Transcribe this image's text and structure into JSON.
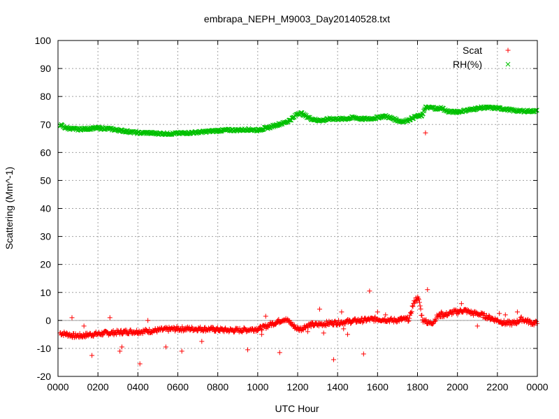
{
  "chart_data": {
    "type": "scatter",
    "title": "embrapa_NEPH_M9003_Day20140528.txt",
    "xlabel": "UTC Hour",
    "ylabel": "Scattering (Mm^-1)",
    "xlim": [
      0,
      24
    ],
    "ylim": [
      -20,
      100
    ],
    "x_ticks": [
      0,
      2,
      4,
      6,
      8,
      10,
      12,
      14,
      16,
      18,
      20,
      22,
      24
    ],
    "x_tick_labels": [
      "0000",
      "0200",
      "0400",
      "0600",
      "0800",
      "1000",
      "1200",
      "1400",
      "1600",
      "1800",
      "2000",
      "2200",
      "0000"
    ],
    "y_ticks": [
      -20,
      -10,
      0,
      10,
      20,
      30,
      40,
      50,
      60,
      70,
      80,
      90,
      100
    ],
    "grid": true,
    "legend_position": "top-right",
    "series": [
      {
        "name": "Scat",
        "marker": "+",
        "color": "#ff0000",
        "x": [
          0.1,
          0.5,
          0.8,
          1.2,
          1.6,
          2.0,
          2.5,
          3.0,
          3.5,
          4.0,
          4.5,
          5.0,
          5.5,
          6.0,
          6.5,
          7.0,
          7.5,
          8.0,
          8.5,
          9.0,
          9.5,
          10.0,
          10.3,
          10.6,
          11.0,
          11.3,
          11.6,
          11.8,
          12.0,
          12.2,
          12.4,
          12.7,
          13.0,
          13.3,
          13.6,
          14.0,
          14.4,
          14.8,
          15.2,
          15.6,
          16.0,
          16.4,
          16.8,
          17.2,
          17.6,
          17.75,
          17.9,
          18.0,
          18.1,
          18.2,
          18.3,
          18.4,
          18.5,
          18.6,
          18.8,
          19.0,
          19.2,
          19.4,
          19.6,
          19.8,
          20.0,
          20.2,
          20.4,
          20.6,
          20.8,
          21.0,
          21.2,
          21.4,
          21.6,
          21.8,
          22.0,
          22.2,
          22.4,
          22.6,
          22.8,
          23.0,
          23.2,
          23.4,
          23.6,
          23.8,
          24.0
        ],
        "y": [
          -4.5,
          -5.0,
          -5.5,
          -5.5,
          -5.0,
          -4.8,
          -4.5,
          -4.3,
          -4.0,
          -4.0,
          -3.8,
          -3.5,
          -3.2,
          -3.0,
          -3.0,
          -3.0,
          -3.1,
          -3.3,
          -3.5,
          -3.5,
          -3.3,
          -3.0,
          -2.5,
          -1.5,
          -0.5,
          0.5,
          -0.5,
          -2.0,
          -3.0,
          -3.0,
          -2.0,
          -1.5,
          -1.5,
          -1.2,
          -1.0,
          -0.8,
          -0.5,
          -0.2,
          0.0,
          0.3,
          0.5,
          0.3,
          0.0,
          0.3,
          0.5,
          5.0,
          7.5,
          8.0,
          6.5,
          2.0,
          -0.5,
          0.5,
          -1.0,
          -1.0,
          -0.5,
          1.5,
          2.0,
          2.0,
          2.5,
          3.0,
          3.0,
          3.5,
          3.5,
          3.0,
          2.5,
          2.5,
          2.0,
          1.5,
          1.0,
          0.5,
          0.0,
          -0.5,
          -1.0,
          -1.0,
          -1.0,
          -0.5,
          0.5,
          0.0,
          -0.5,
          -1.0,
          -1.0
        ],
        "outliers_x": [
          0.7,
          1.7,
          1.3,
          2.6,
          3.1,
          3.2,
          4.1,
          4.5,
          5.4,
          6.2,
          7.2,
          9.5,
          10.2,
          10.4,
          11.0,
          11.1,
          12.5,
          13.1,
          13.3,
          13.8,
          14.2,
          14.3,
          14.5,
          15.3,
          15.6,
          16.0,
          16.4,
          17.2,
          18.4,
          18.5,
          19.2,
          20.2,
          21.0,
          22.1,
          22.4,
          23.0
        ],
        "outliers_y": [
          1.0,
          -12.5,
          -2.0,
          1.0,
          -11.0,
          -9.5,
          -15.5,
          0.0,
          -9.5,
          -11.0,
          -7.5,
          -10.5,
          -5.0,
          1.5,
          0.0,
          -11.5,
          -4.0,
          4.0,
          -4.5,
          -14.0,
          3.0,
          -3.0,
          -5.0,
          -12.0,
          10.5,
          3.0,
          2.0,
          1.0,
          67.0,
          11.0,
          3.0,
          6.0,
          -2.0,
          2.5,
          2.0,
          3.0
        ]
      },
      {
        "name": "RH(%)",
        "marker": "x",
        "color": "#00c000",
        "x": [
          0.1,
          0.3,
          0.6,
          1.0,
          1.5,
          2.0,
          2.5,
          3.0,
          3.5,
          4.0,
          4.5,
          5.0,
          5.5,
          6.0,
          6.5,
          7.0,
          7.5,
          8.0,
          8.5,
          9.0,
          9.5,
          10.0,
          10.3,
          10.6,
          11.0,
          11.3,
          11.6,
          11.8,
          12.0,
          12.2,
          12.4,
          12.7,
          13.0,
          13.3,
          13.6,
          14.0,
          14.4,
          14.8,
          15.2,
          15.6,
          16.0,
          16.4,
          16.8,
          17.2,
          17.5,
          17.8,
          18.0,
          18.2,
          18.4,
          18.6,
          18.8,
          19.0,
          19.2,
          19.4,
          19.6,
          19.8,
          20.0,
          20.4,
          20.8,
          21.2,
          21.6,
          22.0,
          22.4,
          22.8,
          23.2,
          23.6,
          24.0
        ],
        "y": [
          70.0,
          69.0,
          68.5,
          68.3,
          68.5,
          68.7,
          68.5,
          68.0,
          67.5,
          67.0,
          67.0,
          66.8,
          66.7,
          66.8,
          67.0,
          67.2,
          67.5,
          67.8,
          68.0,
          68.0,
          68.2,
          68.0,
          68.5,
          69.0,
          70.0,
          70.5,
          71.5,
          72.5,
          74.0,
          74.0,
          73.0,
          72.0,
          71.5,
          71.5,
          72.0,
          72.0,
          72.0,
          72.5,
          72.0,
          72.0,
          72.5,
          73.0,
          72.0,
          71.0,
          71.5,
          72.5,
          73.0,
          73.0,
          76.0,
          76.0,
          76.0,
          75.5,
          76.0,
          75.0,
          74.5,
          74.5,
          74.5,
          75.0,
          75.5,
          76.0,
          76.0,
          75.8,
          75.5,
          75.0,
          74.8,
          74.8,
          74.8
        ]
      }
    ]
  }
}
